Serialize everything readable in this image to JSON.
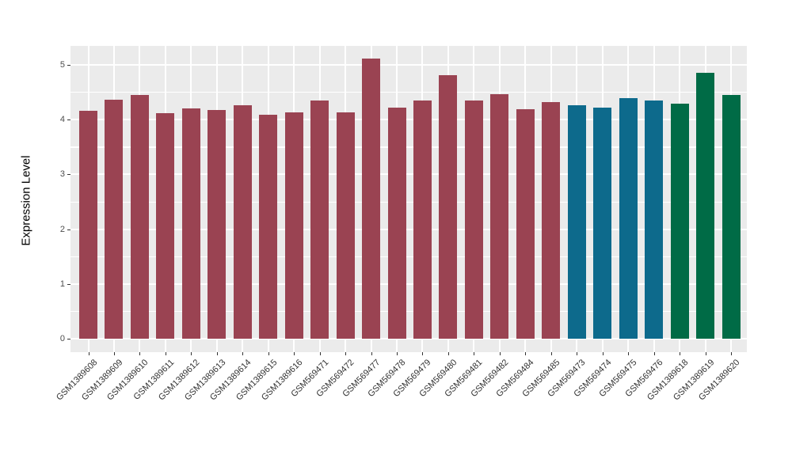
{
  "chart_data": {
    "type": "bar",
    "title": "",
    "xlabel": "",
    "ylabel": "Expression Level",
    "categories": [
      "GSM1389608",
      "GSM1389609",
      "GSM1389610",
      "GSM1389611",
      "GSM1389612",
      "GSM1389613",
      "GSM1389614",
      "GSM1389615",
      "GSM1389616",
      "GSM569471",
      "GSM569472",
      "GSM569477",
      "GSM569478",
      "GSM569479",
      "GSM569480",
      "GSM569481",
      "GSM569482",
      "GSM569484",
      "GSM569485",
      "GSM569473",
      "GSM569474",
      "GSM569475",
      "GSM569476",
      "GSM1389618",
      "GSM1389619",
      "GSM1389620"
    ],
    "values": [
      4.16,
      4.36,
      4.45,
      4.12,
      4.21,
      4.17,
      4.27,
      4.09,
      4.13,
      4.35,
      4.13,
      5.11,
      4.22,
      4.35,
      4.81,
      4.35,
      4.46,
      4.19,
      4.32,
      4.26,
      4.22,
      4.39,
      4.35,
      4.29,
      4.86,
      4.45
    ],
    "bar_color_keys": [
      "red",
      "red",
      "red",
      "red",
      "red",
      "red",
      "red",
      "red",
      "red",
      "red",
      "red",
      "red",
      "red",
      "red",
      "red",
      "red",
      "red",
      "red",
      "red",
      "blue",
      "blue",
      "blue",
      "blue",
      "green",
      "green",
      "green"
    ],
    "palette": {
      "red": "#9A4352",
      "blue": "#0D6A8C",
      "green": "#006B46"
    },
    "y_ticks": [
      0,
      1,
      2,
      3,
      4,
      5
    ],
    "y_minor_ticks": [
      0.5,
      1.5,
      2.5,
      3.5,
      4.5
    ],
    "ylim": [
      0,
      5.35
    ],
    "grid": "on",
    "legend_position": "none",
    "panel_background": "#EBEBEB",
    "gridline_color": "#FFFFFF",
    "tick_mark_color": "#333333",
    "axis_text_color": "#4D4D4D"
  }
}
